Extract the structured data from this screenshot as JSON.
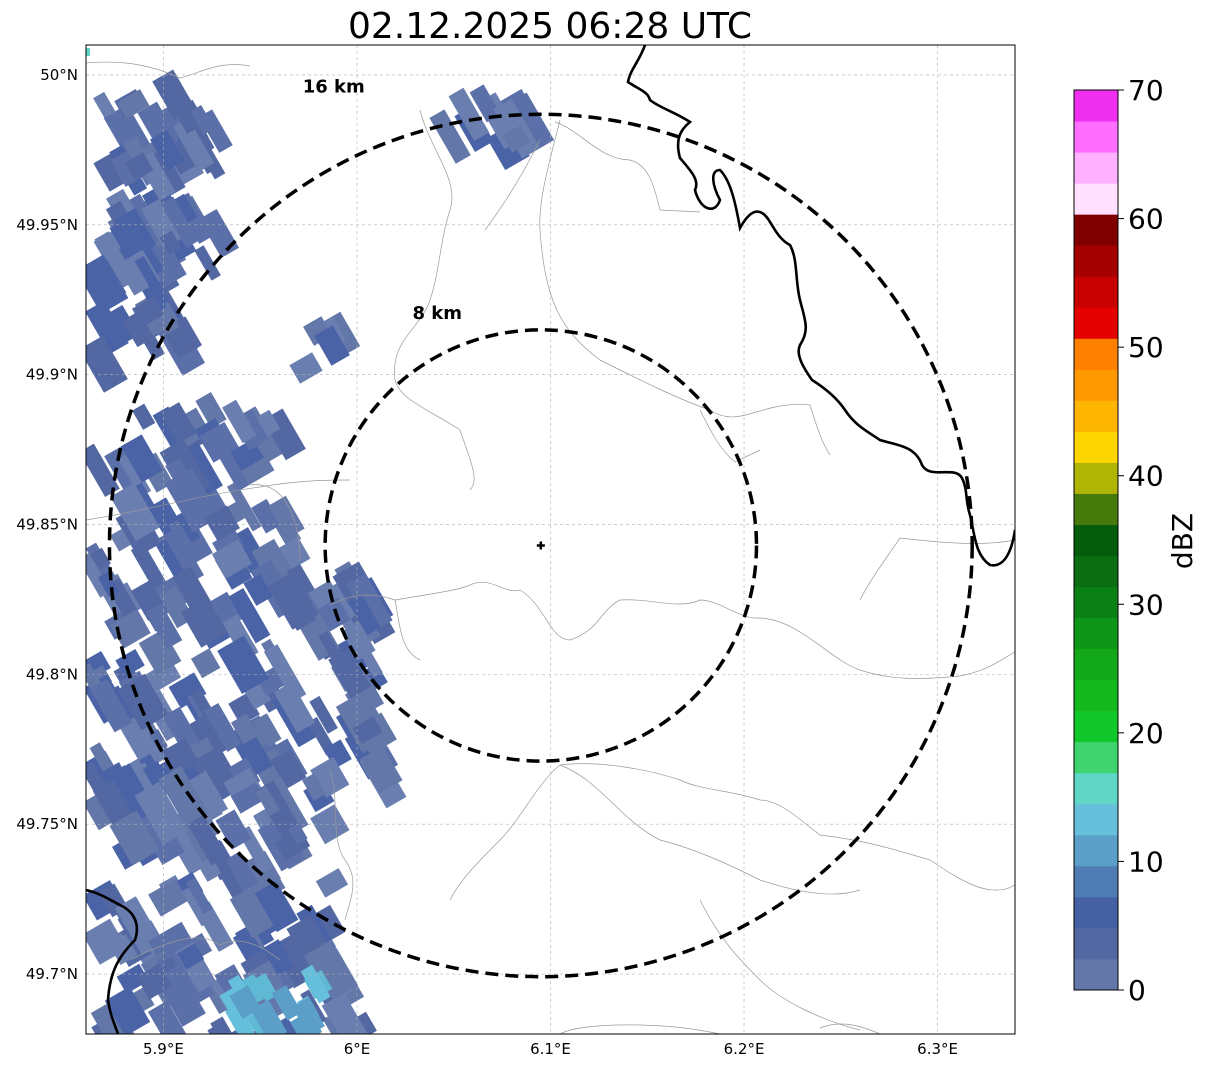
{
  "title": "02.12.2025 06:28 UTC",
  "x_ticks": [
    {
      "value": 5.9,
      "label": "5.9°E"
    },
    {
      "value": 6.0,
      "label": "6°E"
    },
    {
      "value": 6.1,
      "label": "6.1°E"
    },
    {
      "value": 6.2,
      "label": "6.2°E"
    },
    {
      "value": 6.3,
      "label": "6.3°E"
    }
  ],
  "y_ticks": [
    {
      "value": 50.0,
      "label": "50°N"
    },
    {
      "value": 49.95,
      "label": "49.95°N"
    },
    {
      "value": 49.9,
      "label": "49.9°N"
    },
    {
      "value": 49.85,
      "label": "49.85°N"
    },
    {
      "value": 49.8,
      "label": "49.8°N"
    },
    {
      "value": 49.75,
      "label": "49.75°N"
    },
    {
      "value": 49.7,
      "label": "49.7°N"
    }
  ],
  "map_extent": {
    "lon": [
      5.86,
      6.34
    ],
    "lat": [
      49.68,
      50.01
    ]
  },
  "center": {
    "lon": 6.095,
    "lat": 49.843
  },
  "range_rings": [
    {
      "radius_km": 8,
      "label": "8 km"
    },
    {
      "radius_km": 16,
      "label": "16 km"
    }
  ],
  "colorbar": {
    "label": "dBZ",
    "min": 0,
    "max": 70,
    "ticks": [
      "0",
      "10",
      "20",
      "30",
      "40",
      "50",
      "60",
      "70"
    ],
    "colors": [
      "#6377a8",
      "#5368a2",
      "#4660a4",
      "#4f7bb3",
      "#5b9ec8",
      "#66c0dc",
      "#5fd6c6",
      "#3fd470",
      "#12c72a",
      "#12b81c",
      "#13a81a",
      "#0f9518",
      "#0b8115",
      "#0a6e11",
      "#045c0c",
      "#467a0a",
      "#b0b405",
      "#ffd700",
      "#ffb600",
      "#ff9900",
      "#ff7f00",
      "#e50000",
      "#c70000",
      "#a50000",
      "#800000",
      "#ffe0ff",
      "#ffb0ff",
      "#ff6eff",
      "#f030f0"
    ]
  },
  "gridlines": true
}
